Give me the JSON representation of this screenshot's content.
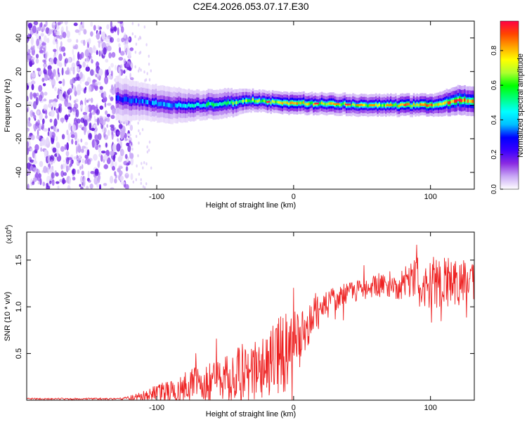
{
  "figure_title": "C2E4.2026.053.07.17.E30",
  "chart_data": [
    {
      "type": "heatmap",
      "name": "spectrogram",
      "xlabel": "Height of straight line (km)",
      "ylabel": "Frequency (Hz)",
      "xlim": [
        -195,
        132
      ],
      "ylim": [
        -50,
        50
      ],
      "xticks": [
        -100,
        0,
        100
      ],
      "yticks": [
        -40,
        -20,
        0,
        20,
        40
      ],
      "colorbar": {
        "label": "Normalized spectral amplitude",
        "range": [
          0,
          0.97
        ],
        "ticks": [
          0.0,
          0.2,
          0.4,
          0.6,
          0.8
        ],
        "colors": [
          "#ffffff",
          "#c9a8f5",
          "#8a2be2",
          "#3a00ff",
          "#0000ff",
          "#00bfff",
          "#00ffff",
          "#00ff7f",
          "#00ff00",
          "#adff2f",
          "#ffff00",
          "#ffa500",
          "#ff4500",
          "#ff0044"
        ]
      },
      "noise_region_x": [
        -195,
        -118
      ],
      "signal_track": [
        {
          "x": -130,
          "center": 4,
          "halfwidth": 6,
          "peak": 0.3
        },
        {
          "x": -110,
          "center": 2,
          "halfwidth": 5,
          "peak": 0.35
        },
        {
          "x": -90,
          "center": 0,
          "halfwidth": 5,
          "peak": 0.4
        },
        {
          "x": -70,
          "center": 0,
          "halfwidth": 4,
          "peak": 0.5
        },
        {
          "x": -50,
          "center": 1,
          "halfwidth": 4,
          "peak": 0.6
        },
        {
          "x": -30,
          "center": 3,
          "halfwidth": 3,
          "peak": 0.7
        },
        {
          "x": -20,
          "center": 2,
          "halfwidth": 3,
          "peak": 0.75
        },
        {
          "x": 0,
          "center": 1,
          "halfwidth": 3,
          "peak": 0.8
        },
        {
          "x": 20,
          "center": 1,
          "halfwidth": 3,
          "peak": 0.75
        },
        {
          "x": 50,
          "center": 0,
          "halfwidth": 3,
          "peak": 0.7
        },
        {
          "x": 80,
          "center": 0,
          "halfwidth": 3,
          "peak": 0.8
        },
        {
          "x": 100,
          "center": 0,
          "halfwidth": 3,
          "peak": 0.85
        },
        {
          "x": 120,
          "center": 3,
          "halfwidth": 4,
          "peak": 0.9
        },
        {
          "x": 132,
          "center": 2,
          "halfwidth": 4,
          "peak": 0.8
        }
      ]
    },
    {
      "type": "line",
      "name": "snr",
      "xlabel": "Height of straight line (km)",
      "ylabel": "SNR (10 * v/v)",
      "y_multiplier": "(x10",
      "y_multiplier_exp": "4",
      "y_multiplier_close": ")",
      "xlim": [
        -195,
        132
      ],
      "ylim": [
        0,
        18000
      ],
      "xticks": [
        -100,
        0,
        100
      ],
      "yticks": [
        5000,
        10000,
        15000
      ],
      "ytick_labels": [
        "0.5",
        "1.0",
        "1.5"
      ],
      "color": "#ee2222",
      "envelope": {
        "x": [
          -195,
          -125,
          -115,
          -100,
          -80,
          -60,
          -40,
          -25,
          -15,
          -5,
          5,
          15,
          25,
          40,
          60,
          80,
          100,
          110,
          120,
          132
        ],
        "base": [
          150,
          150,
          300,
          700,
          1300,
          2100,
          2900,
          3500,
          4500,
          5200,
          7000,
          9000,
          10300,
          11500,
          12300,
          12500,
          12800,
          13000,
          12500,
          12700
        ],
        "spread": [
          80,
          100,
          400,
          900,
          1700,
          2300,
          3000,
          3500,
          4300,
          4300,
          2500,
          2000,
          1500,
          1200,
          1200,
          1800,
          3200,
          3000,
          2600,
          2000
        ]
      }
    }
  ]
}
